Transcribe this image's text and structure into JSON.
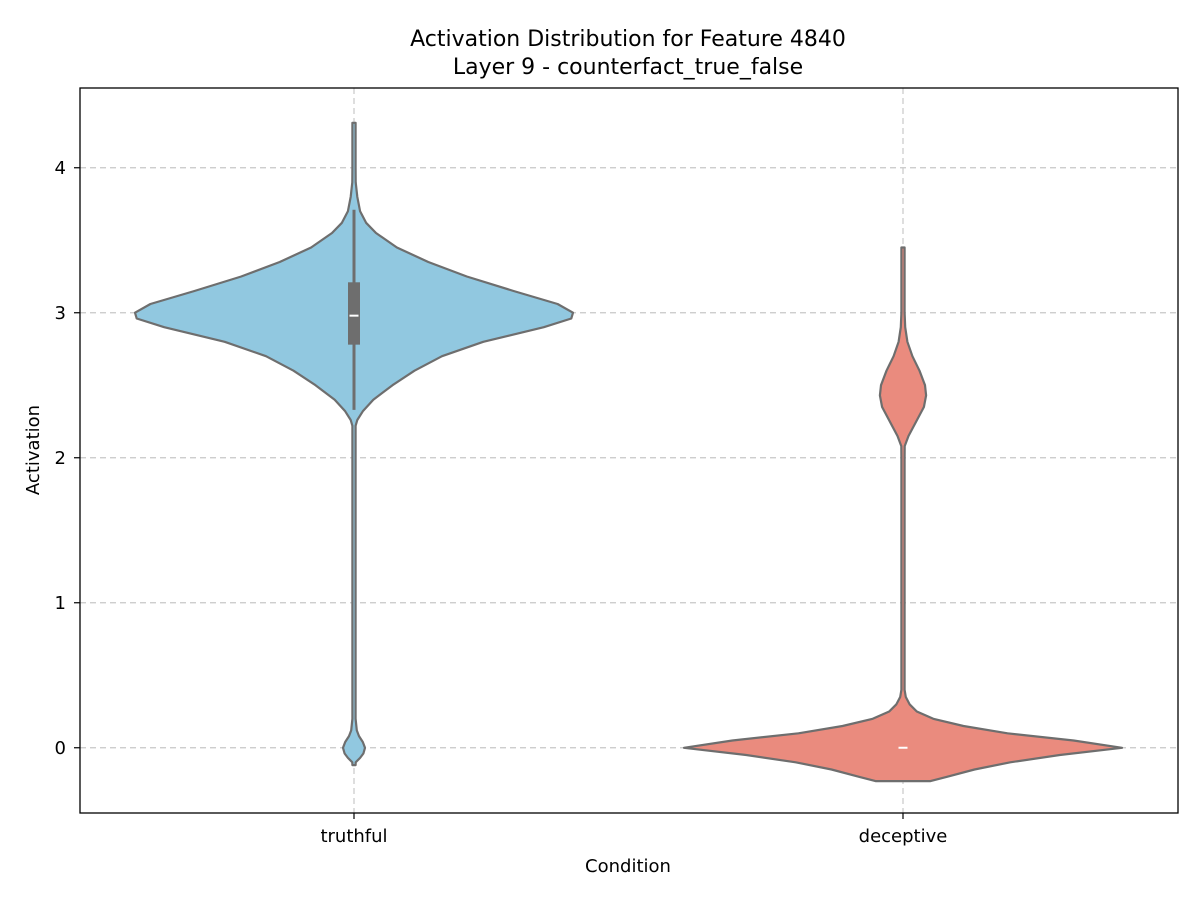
{
  "chart_data": {
    "type": "violin",
    "title": "Activation Distribution for Feature 4840",
    "subtitle": "Layer 9 - counterfact_true_false",
    "xlabel": "Condition",
    "ylabel": "Activation",
    "categories": [
      "truthful",
      "deceptive"
    ],
    "ylim": [
      -0.45,
      4.55
    ],
    "yticks": [
      0,
      1,
      2,
      3,
      4
    ],
    "grid": true,
    "outline_color": "#6e6e6e",
    "series": [
      {
        "category": "truthful",
        "color": "#91c8e0",
        "median": 2.98,
        "q1": 2.78,
        "q3": 3.21,
        "whisker_low": 2.33,
        "whisker_high": 3.71,
        "min": -0.12,
        "max": 4.31,
        "density_half_width": [
          [
            -0.12,
            0.0
          ],
          [
            -0.1,
            0.003
          ],
          [
            -0.07,
            0.011
          ],
          [
            -0.04,
            0.017
          ],
          [
            0.0,
            0.02
          ],
          [
            0.04,
            0.016
          ],
          [
            0.08,
            0.009
          ],
          [
            0.12,
            0.005
          ],
          [
            0.2,
            0.002
          ],
          [
            0.4,
            0.001
          ],
          [
            1.0,
            0.001
          ],
          [
            2.0,
            0.001
          ],
          [
            2.22,
            0.002
          ],
          [
            2.26,
            0.006
          ],
          [
            2.32,
            0.016
          ],
          [
            2.4,
            0.035
          ],
          [
            2.5,
            0.07
          ],
          [
            2.6,
            0.11
          ],
          [
            2.7,
            0.16
          ],
          [
            2.8,
            0.235
          ],
          [
            2.9,
            0.345
          ],
          [
            2.96,
            0.395
          ],
          [
            3.0,
            0.398
          ],
          [
            3.06,
            0.37
          ],
          [
            3.15,
            0.29
          ],
          [
            3.25,
            0.205
          ],
          [
            3.35,
            0.135
          ],
          [
            3.45,
            0.078
          ],
          [
            3.55,
            0.04
          ],
          [
            3.62,
            0.022
          ],
          [
            3.7,
            0.011
          ],
          [
            3.8,
            0.006
          ],
          [
            3.9,
            0.003
          ],
          [
            4.0,
            0.002
          ],
          [
            4.15,
            0.001
          ],
          [
            4.31,
            0.0
          ]
        ]
      },
      {
        "category": "deceptive",
        "color": "#ea8b7e",
        "median": 0.0,
        "q1": 0.0,
        "q3": 0.0,
        "whisker_low": 0.0,
        "whisker_high": 0.0,
        "min": -0.23,
        "max": 3.45,
        "density_half_width": [
          [
            -0.23,
            0.05
          ],
          [
            -0.2,
            0.08
          ],
          [
            -0.15,
            0.13
          ],
          [
            -0.1,
            0.195
          ],
          [
            -0.05,
            0.285
          ],
          [
            0.0,
            0.398
          ],
          [
            0.05,
            0.31
          ],
          [
            0.1,
            0.19
          ],
          [
            0.15,
            0.11
          ],
          [
            0.2,
            0.055
          ],
          [
            0.25,
            0.025
          ],
          [
            0.3,
            0.012
          ],
          [
            0.35,
            0.005
          ],
          [
            0.4,
            0.002
          ],
          [
            0.6,
            0.001
          ],
          [
            1.0,
            0.001
          ],
          [
            1.6,
            0.001
          ],
          [
            2.0,
            0.001
          ],
          [
            2.08,
            0.003
          ],
          [
            2.15,
            0.01
          ],
          [
            2.25,
            0.024
          ],
          [
            2.35,
            0.038
          ],
          [
            2.43,
            0.042
          ],
          [
            2.5,
            0.04
          ],
          [
            2.6,
            0.03
          ],
          [
            2.7,
            0.017
          ],
          [
            2.8,
            0.008
          ],
          [
            2.9,
            0.004
          ],
          [
            3.0,
            0.002
          ],
          [
            3.2,
            0.001
          ],
          [
            3.45,
            0.0
          ]
        ]
      }
    ]
  }
}
